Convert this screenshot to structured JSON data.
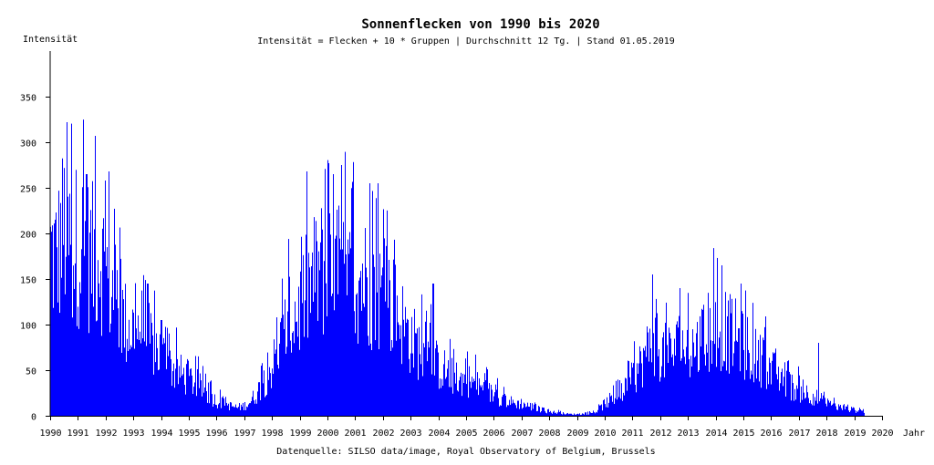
{
  "chart_data": {
    "type": "bar",
    "title": "Sonnenflecken von 1990 bis 2020",
    "subtitle": "Intensität = Flecken + 10 * Gruppen | Durchschnitt 12 Tg. | Stand 01.05.2019",
    "xlabel": "Jahr",
    "ylabel": "Intensität",
    "source": "Datenquelle: SILSO data/image, Royal Observatory of Belgium, Brussels",
    "xlim": [
      1990,
      2020
    ],
    "ylim": [
      0,
      400
    ],
    "x_ticks": [
      1990,
      1991,
      1992,
      1993,
      1994,
      1995,
      1996,
      1997,
      1998,
      1999,
      2000,
      2001,
      2002,
      2003,
      2004,
      2005,
      2006,
      2007,
      2008,
      2009,
      2010,
      2011,
      2012,
      2013,
      2014,
      2015,
      2016,
      2017,
      2018,
      2019,
      2020
    ],
    "y_ticks": [
      0,
      50,
      100,
      150,
      200,
      250,
      300,
      350
    ],
    "grid": false,
    "color": "#0000ff",
    "data_end": 2019.33,
    "series": [
      {
        "x": [
          1990.0,
          1990.25,
          1990.5,
          1990.75,
          1991.0,
          1991.25,
          1991.5,
          1991.75,
          1992.0,
          1992.25,
          1992.5,
          1992.75,
          1993.0,
          1993.25,
          1993.5,
          1993.75,
          1994.0,
          1994.25,
          1994.5,
          1994.75,
          1995.0,
          1995.25,
          1995.5,
          1995.75,
          1996.0,
          1996.25,
          1996.5,
          1996.75,
          1997.0,
          1997.25,
          1997.5,
          1997.75,
          1998.0,
          1998.25,
          1998.5,
          1998.75,
          1999.0,
          1999.25,
          1999.5,
          1999.75,
          2000.0,
          2000.25,
          2000.5,
          2000.75,
          2001.0,
          2001.25,
          2001.5,
          2001.75,
          2002.0,
          2002.25,
          2002.5,
          2002.75,
          2003.0,
          2003.25,
          2003.5,
          2003.75,
          2004.0,
          2004.25,
          2004.5,
          2004.75,
          2005.0,
          2005.25,
          2005.5,
          2005.75,
          2006.0,
          2006.25,
          2006.5,
          2006.75,
          2007.0,
          2007.25,
          2007.5,
          2007.75,
          2008.0,
          2008.25,
          2008.5,
          2008.75,
          2009.0,
          2009.25,
          2009.5,
          2009.75,
          2010.0,
          2010.25,
          2010.5,
          2010.75,
          2011.0,
          2011.25,
          2011.5,
          2011.75,
          2012.0,
          2012.25,
          2012.5,
          2012.75,
          2013.0,
          2013.25,
          2013.5,
          2013.75,
          2014.0,
          2014.25,
          2014.5,
          2014.75,
          2015.0,
          2015.25,
          2015.5,
          2015.75,
          2016.0,
          2016.25,
          2016.5,
          2016.75,
          2017.0,
          2017.25,
          2017.5,
          2017.75,
          2018.0,
          2018.25,
          2018.5,
          2018.75,
          2019.0,
          2019.33
        ],
        "values": [
          200,
          190,
          230,
          200,
          210,
          205,
          190,
          200,
          180,
          150,
          130,
          110,
          105,
          110,
          95,
          85,
          75,
          65,
          55,
          50,
          45,
          40,
          32,
          25,
          18,
          15,
          12,
          10,
          12,
          18,
          30,
          45,
          60,
          80,
          105,
          120,
          130,
          150,
          165,
          180,
          170,
          175,
          165,
          160,
          165,
          170,
          160,
          150,
          145,
          140,
          130,
          110,
          95,
          85,
          75,
          70,
          60,
          55,
          48,
          42,
          45,
          40,
          35,
          30,
          25,
          22,
          18,
          15,
          15,
          12,
          10,
          7,
          5,
          4,
          3,
          2,
          2,
          2,
          3,
          6,
          15,
          20,
          25,
          30,
          45,
          60,
          75,
          95,
          80,
          75,
          80,
          85,
          80,
          85,
          90,
          95,
          110,
          105,
          100,
          95,
          85,
          80,
          70,
          65,
          55,
          50,
          45,
          35,
          30,
          28,
          25,
          20,
          15,
          12,
          10,
          8,
          7,
          6
        ],
        "peaks": [
          [
            1990.6,
            322
          ],
          [
            1991.6,
            307
          ],
          [
            1991.3,
            265
          ],
          [
            1992.1,
            268
          ],
          [
            1993.5,
            145
          ],
          [
            1994.0,
            105
          ],
          [
            2000.5,
            275
          ],
          [
            2000.2,
            265
          ],
          [
            2001.5,
            255
          ],
          [
            2001.8,
            255
          ],
          [
            2003.8,
            145
          ],
          [
            2011.7,
            155
          ],
          [
            2012.7,
            140
          ],
          [
            2014.2,
            165
          ],
          [
            2014.9,
            145
          ],
          [
            2017.7,
            80
          ]
        ]
      }
    ]
  }
}
